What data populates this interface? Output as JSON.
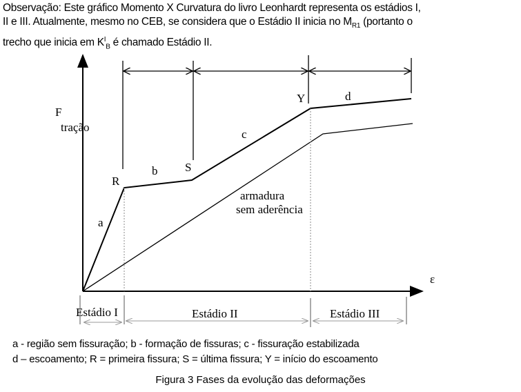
{
  "note": {
    "line1": "Observação: Este gráfico Momento X Curvatura do livro Leonhardt representa os estádios I,",
    "line2a": "II e III. Atualmente, mesmo no CEB, se considera que o Estádio II inicia no M",
    "line2sub": "R1",
    "line2b": " (portanto o",
    "line3a": "trecho que inicia em K",
    "line3sup": "I",
    "line3sub": "B",
    "line3b": " é chamado Estádio II."
  },
  "diagram": {
    "y_axis_label": "F",
    "y_axis_sublabel": "tração",
    "x_axis_label": "ε",
    "points": {
      "R": "R",
      "S": "S",
      "Y": "Y"
    },
    "segments": {
      "a": "a",
      "b": "b",
      "c": "c",
      "d": "d"
    },
    "unbonded_1": "armadura",
    "unbonded_2": "sem aderência",
    "stages": [
      "Estádio I",
      "Estádio II",
      "Estádio III"
    ]
  },
  "legend": {
    "line1": "a - região sem fissuração;  b - formação de fissuras;  c - fissuração estabilizada",
    "line2": "d – escoamento; R = primeira fissura;  S = última fissura;  Y = início do escoamento"
  },
  "caption": "Figura 3 Fases da evolução das deformações"
}
